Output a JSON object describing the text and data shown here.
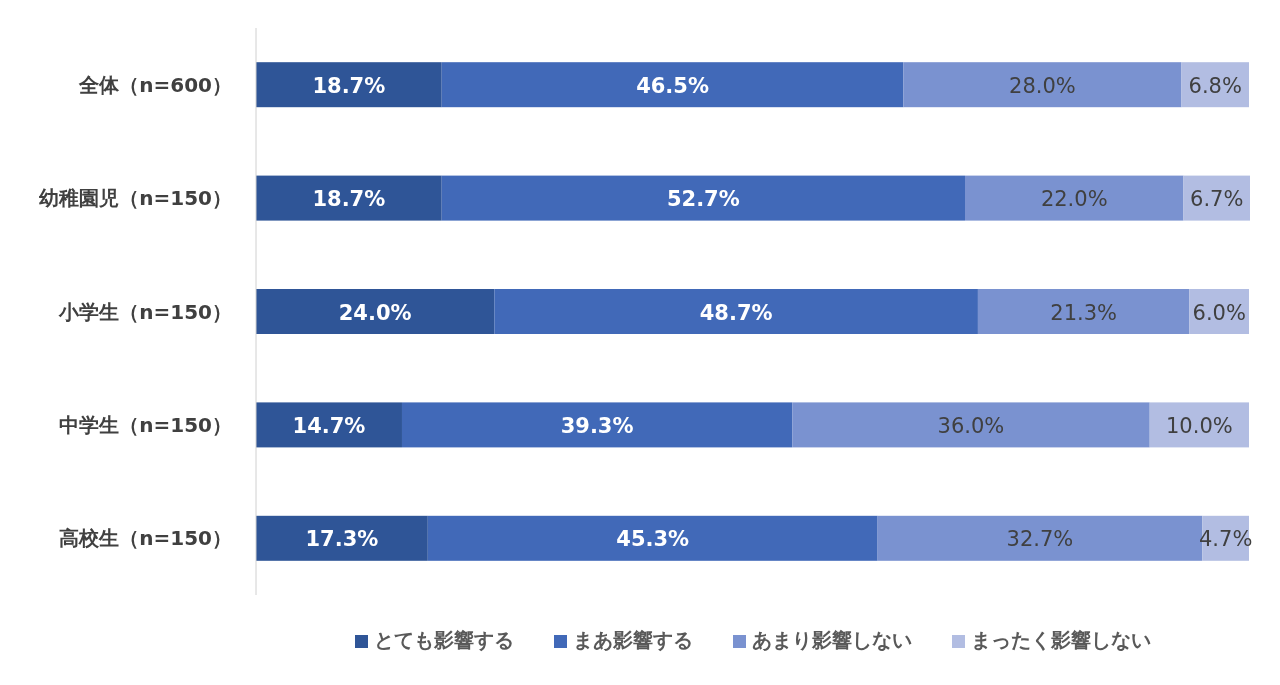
{
  "chart_data": {
    "type": "bar",
    "orientation": "horizontal",
    "stacked": true,
    "legend": "bottom",
    "categories": [
      "全体（n=600）",
      "幼稚園児（n=150）",
      "小学生（n=150）",
      "中学生（n=150）",
      "高校生（n=150）"
    ],
    "series": [
      {
        "name": "とても影響する",
        "color": "#2f5597",
        "values": [
          18.7,
          18.7,
          24.0,
          14.7,
          17.3
        ],
        "value_labels": [
          "18.7%",
          "18.7%",
          "24.0%",
          "14.7%",
          "17.3%"
        ]
      },
      {
        "name": "まあ影響する",
        "color": "#4169b8",
        "values": [
          46.5,
          52.7,
          48.7,
          39.3,
          45.3
        ],
        "value_labels": [
          "46.5%",
          "52.7%",
          "48.7%",
          "39.3%",
          "45.3%"
        ]
      },
      {
        "name": "あまり影響しない",
        "color": "#7a92d0",
        "values": [
          28.0,
          22.0,
          21.3,
          36.0,
          32.7
        ],
        "value_labels": [
          "28.0%",
          "22.0%",
          "21.3%",
          "36.0%",
          "32.7%"
        ]
      },
      {
        "name": "まったく影響しない",
        "color": "#b2bde2",
        "values": [
          6.8,
          6.7,
          6.0,
          10.0,
          4.7
        ],
        "value_labels": [
          "6.8%",
          "6.7%",
          "6.0%",
          "10.0%",
          "4.7%"
        ]
      }
    ]
  }
}
